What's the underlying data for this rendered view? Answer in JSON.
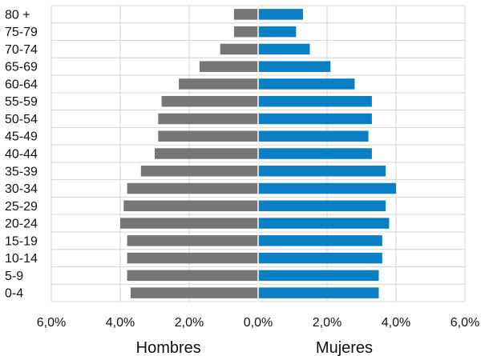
{
  "chart_data": {
    "type": "bar",
    "orientation": "horizontal",
    "subtype": "population-pyramid",
    "categories": [
      "80 +",
      "75-79",
      "70-74",
      "65-69",
      "60-64",
      "55-59",
      "50-54",
      "45-49",
      "40-44",
      "35-39",
      "30-34",
      "25-29",
      "20-24",
      "15-19",
      "10-14",
      "5-9",
      "0-4"
    ],
    "series": [
      {
        "name": "Hombres",
        "color": "#767676",
        "values": [
          0.7,
          0.7,
          1.1,
          1.7,
          2.3,
          2.8,
          2.9,
          2.9,
          3.0,
          3.4,
          3.8,
          3.9,
          4.0,
          3.8,
          3.8,
          3.8,
          3.7
        ]
      },
      {
        "name": "Mujeres",
        "color": "#0a7fc4",
        "values": [
          1.3,
          1.1,
          1.5,
          2.1,
          2.8,
          3.3,
          3.3,
          3.2,
          3.3,
          3.7,
          4.0,
          3.7,
          3.8,
          3.6,
          3.6,
          3.5,
          3.5
        ]
      }
    ],
    "xlim": [
      -6.0,
      6.0
    ],
    "xticks": [
      "6,0%",
      "4,0%",
      "2,0%",
      "0,0%",
      "2,0%",
      "4,0%",
      "6,0%"
    ],
    "xtick_values": [
      -6,
      -4,
      -2,
      0,
      2,
      4,
      6
    ],
    "xlabels": [
      "Hombres",
      "Mujeres"
    ],
    "grid": true,
    "legend": "none"
  }
}
